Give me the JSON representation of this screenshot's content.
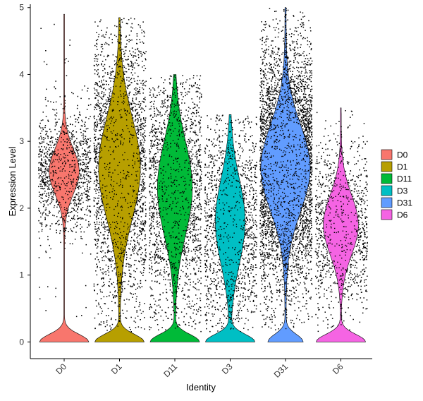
{
  "chart_data": {
    "type": "violin",
    "xlabel": "Identity",
    "ylabel": "Expression Level",
    "ylim": [
      -0.25,
      5.05
    ],
    "yticks": [
      0,
      1,
      2,
      3,
      4,
      5
    ],
    "grid": false,
    "legend_position": "right",
    "jitter_points": true,
    "categories": [
      "D0",
      "D1",
      "D11",
      "D3",
      "D31",
      "D6"
    ],
    "colors": [
      "#F8766D",
      "#B79F00",
      "#00BA38",
      "#00BFC4",
      "#619CFF",
      "#F564E3"
    ],
    "series": [
      {
        "name": "D0",
        "max": 4.9,
        "dense_low": 2.3,
        "dense_high": 2.8,
        "zero_fraction": 0.35,
        "n_points": 1400
      },
      {
        "name": "D1",
        "max": 4.85,
        "dense_low": 1.6,
        "dense_high": 3.6,
        "zero_fraction": 0.25,
        "n_points": 2800
      },
      {
        "name": "D11",
        "max": 4.0,
        "dense_low": 1.4,
        "dense_high": 3.2,
        "zero_fraction": 0.3,
        "n_points": 2300
      },
      {
        "name": "D3",
        "max": 3.4,
        "dense_low": 1.0,
        "dense_high": 2.6,
        "zero_fraction": 0.35,
        "n_points": 1700
      },
      {
        "name": "D31",
        "max": 5.0,
        "dense_low": 1.8,
        "dense_high": 3.4,
        "zero_fraction": 0.15,
        "n_points": 5000
      },
      {
        "name": "D6",
        "max": 3.5,
        "dense_low": 1.3,
        "dense_high": 2.2,
        "zero_fraction": 0.3,
        "n_points": 1300
      }
    ]
  }
}
